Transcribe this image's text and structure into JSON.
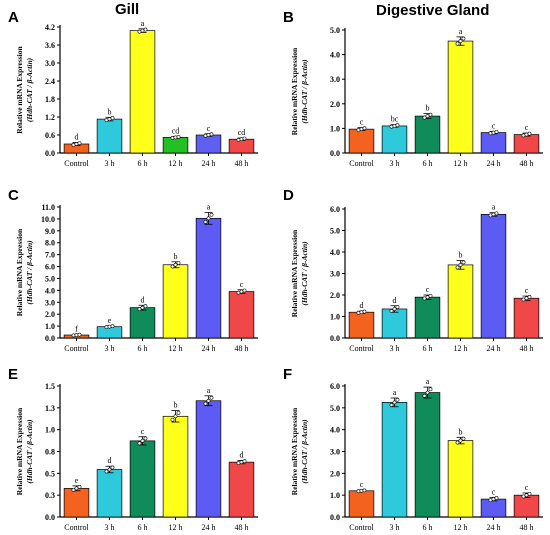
{
  "column_titles": {
    "left": "Gill",
    "right": "Digestive Gland"
  },
  "ylabel_line1": "Relative mRNA Expression",
  "ylabel_line2": "(Hdh-CAT / β-Actin)",
  "chart_data": [
    {
      "panel": "A",
      "type": "bar",
      "categories": [
        "Control",
        "3 h",
        "6 h",
        "12 h",
        "24 h",
        "48 h"
      ],
      "values": [
        0.3,
        1.13,
        4.08,
        0.52,
        0.6,
        0.46
      ],
      "errors": [
        0.05,
        0.06,
        0.06,
        0.03,
        0.04,
        0.04
      ],
      "letters": [
        "d",
        "b",
        "a",
        "cd",
        "c",
        "cd"
      ],
      "colors": [
        "#f4621f",
        "#2ec9da",
        "#ffff1c",
        "#22c022",
        "#6060f0",
        "#f04848"
      ],
      "ylim": [
        0,
        4.2
      ],
      "yticks": [
        "0.0",
        "0.6",
        "1.2",
        "1.8",
        "2.4",
        "3.0",
        "3.6",
        "4.2"
      ]
    },
    {
      "panel": "B",
      "type": "bar",
      "categories": [
        "Control",
        "3 h",
        "6 h",
        "12 h",
        "24 h",
        "48 h"
      ],
      "values": [
        0.97,
        1.1,
        1.5,
        4.55,
        0.83,
        0.75
      ],
      "errors": [
        0.06,
        0.05,
        0.1,
        0.17,
        0.05,
        0.06
      ],
      "letters": [
        "c",
        "bc",
        "b",
        "a",
        "c",
        "c"
      ],
      "colors": [
        "#f4621f",
        "#2ec9da",
        "#0f8c5a",
        "#ffff1c",
        "#5c5cf5",
        "#f04848"
      ],
      "ylim": [
        0,
        5.0
      ],
      "yticks": [
        "0.0",
        "1.0",
        "2.0",
        "3.0",
        "4.0",
        "5.0"
      ]
    },
    {
      "panel": "C",
      "type": "bar",
      "categories": [
        "Control",
        "3 h",
        "6 h",
        "12 h",
        "24 h",
        "48 h"
      ],
      "values": [
        0.25,
        0.95,
        2.55,
        6.15,
        10.05,
        3.9
      ],
      "errors": [
        0.05,
        0.07,
        0.2,
        0.25,
        0.5,
        0.15
      ],
      "letters": [
        "f",
        "e",
        "d",
        "b",
        "a",
        "c"
      ],
      "colors": [
        "#f4621f",
        "#2ec9da",
        "#0f8c5a",
        "#ffff1c",
        "#5c5cf5",
        "#f04848"
      ],
      "ylim": [
        0,
        11.0
      ],
      "yticks": [
        "0.0",
        "1.0",
        "2.0",
        "3.0",
        "4.0",
        "5.0",
        "6.0",
        "7.0",
        "8.0",
        "9.0",
        "10.0",
        "11.0"
      ]
    },
    {
      "panel": "D",
      "type": "bar",
      "categories": [
        "Control",
        "3 h",
        "6 h",
        "12 h",
        "24 h",
        "48 h"
      ],
      "values": [
        1.2,
        1.35,
        1.9,
        3.4,
        5.75,
        1.85
      ],
      "errors": [
        0.05,
        0.15,
        0.1,
        0.2,
        0.08,
        0.1
      ],
      "letters": [
        "d",
        "d",
        "c",
        "b",
        "a",
        "c"
      ],
      "colors": [
        "#f4621f",
        "#2ec9da",
        "#0f8c5a",
        "#ffff1c",
        "#5c5cf5",
        "#f04848"
      ],
      "ylim": [
        0,
        6.0
      ],
      "yticks": [
        "0.0",
        "1.0",
        "2.0",
        "3.0",
        "4.0",
        "5.0",
        "6.0"
      ]
    },
    {
      "panel": "E",
      "type": "bar",
      "categories": [
        "Control",
        "3 h",
        "6 h",
        "12 h",
        "24 h",
        "48 h"
      ],
      "values": [
        0.35,
        0.58,
        0.93,
        1.23,
        1.42,
        0.67
      ],
      "errors": [
        0.03,
        0.04,
        0.05,
        0.07,
        0.06,
        0.02
      ],
      "letters": [
        "e",
        "d",
        "c",
        "b",
        "a",
        "d"
      ],
      "colors": [
        "#f4621f",
        "#2ec9da",
        "#0f8c5a",
        "#ffff1c",
        "#5c5cf5",
        "#f04848"
      ],
      "ylim": [
        0,
        1.6
      ],
      "yticks": [
        "0.0",
        "0.3",
        "0.5",
        "0.8",
        "1.0",
        "1.3",
        "1.5"
      ]
    },
    {
      "panel": "F",
      "type": "bar",
      "categories": [
        "Control",
        "3 h",
        "6 h",
        "12 h",
        "24 h",
        "48 h"
      ],
      "values": [
        1.2,
        5.25,
        5.7,
        3.5,
        0.82,
        1.0
      ],
      "errors": [
        0.03,
        0.2,
        0.25,
        0.15,
        0.08,
        0.1
      ],
      "letters": [
        "c",
        "a",
        "a",
        "b",
        "c",
        "c"
      ],
      "colors": [
        "#f4621f",
        "#2ec9da",
        "#0f8c5a",
        "#ffff1c",
        "#5c5cf5",
        "#f04848"
      ],
      "ylim": [
        0,
        6.0
      ],
      "yticks": [
        "0.0",
        "1.0",
        "2.0",
        "3.0",
        "4.0",
        "5.0",
        "6.0"
      ]
    }
  ]
}
